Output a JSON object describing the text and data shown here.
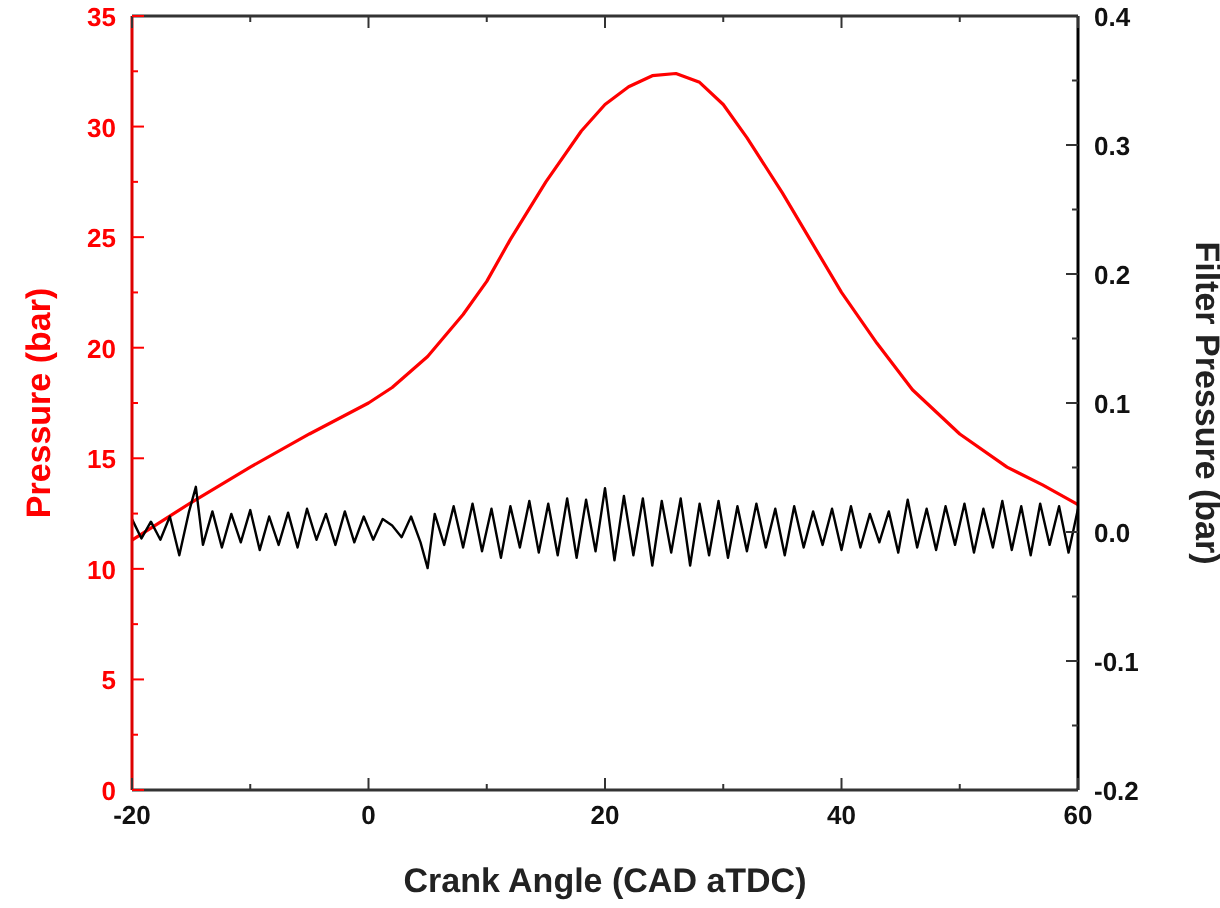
{
  "chart_data": {
    "type": "line",
    "xlabel": "Crank Angle (CAD aTDC)",
    "ylabel": "Pressure (bar)",
    "y2label": "Filter Pressure (bar)",
    "xlim": [
      -20,
      60
    ],
    "xticks": [
      -20,
      {
        "value": -10,
        "label": null
      },
      0,
      {
        "value": 10,
        "label": null
      },
      20,
      {
        "value": 30,
        "label": null
      },
      40,
      {
        "value": 50,
        "label": null
      },
      60
    ],
    "ylim": [
      0,
      35
    ],
    "yticks": [
      0,
      {
        "value": 2.5,
        "label": null
      },
      5,
      {
        "value": 7.5,
        "label": null
      },
      10,
      {
        "value": 12.5,
        "label": null
      },
      15,
      {
        "value": 17.5,
        "label": null
      },
      20,
      {
        "value": 22.5,
        "label": null
      },
      25,
      {
        "value": 27.5,
        "label": null
      },
      30,
      {
        "value": 32.5,
        "label": null
      },
      35
    ],
    "y2lim": [
      -0.2,
      0.4
    ],
    "y2ticks": [
      {
        "value": -0.2,
        "label": "-0.2"
      },
      {
        "value": -0.15,
        "label": null
      },
      {
        "value": -0.1,
        "label": "-0.1"
      },
      {
        "value": -0.05,
        "label": null
      },
      {
        "value": 0,
        "label": "0.0"
      },
      {
        "value": 0.05,
        "label": null
      },
      {
        "value": 0.1,
        "label": "0.1"
      },
      {
        "value": 0.15,
        "label": null
      },
      {
        "value": 0.2,
        "label": "0.2"
      },
      {
        "value": 0.25,
        "label": null
      },
      {
        "value": 0.3,
        "label": "0.3"
      },
      {
        "value": 0.35,
        "label": null
      },
      {
        "value": 0.4,
        "label": "0.4"
      }
    ],
    "grid": false,
    "marker": "none",
    "line_style": "solid",
    "series": [
      {
        "color": "#ff0000",
        "x": [
          -20,
          -15,
          -10,
          -5,
          0,
          2,
          5,
          8,
          10,
          12,
          15,
          18,
          20,
          22,
          24,
          26,
          28,
          30,
          32,
          35,
          38,
          40,
          43,
          46,
          50,
          54,
          57,
          60
        ],
        "values": [
          11.3,
          13,
          14.6,
          16.1,
          17.5,
          18.2,
          19.6,
          21.5,
          23,
          24.9,
          27.5,
          29.8,
          31,
          31.8,
          32.3,
          32.4,
          32,
          31,
          29.5,
          27,
          24.3,
          22.5,
          20.2,
          18.1,
          16.1,
          14.6,
          13.8,
          12.9
        ]
      },
      {
        "color": "#000000",
        "axis": "y2",
        "x": [
          -20,
          -19.2,
          -18.4,
          -17.6,
          -16.8,
          -16,
          -15.2,
          -14.6,
          -14,
          -13.2,
          -12.4,
          -11.6,
          -10.8,
          -10,
          -9.2,
          -8.4,
          -7.6,
          -6.8,
          -6,
          -5.2,
          -4.4,
          -3.6,
          -2.8,
          -2,
          -1.2,
          -0.4,
          0.4,
          1.2,
          2,
          2.8,
          3.6,
          4.4,
          5,
          5.6,
          6.4,
          7.2,
          8,
          8.8,
          9.6,
          10.4,
          11.2,
          12,
          12.8,
          13.6,
          14.4,
          15.2,
          16,
          16.8,
          17.6,
          18.4,
          19.2,
          20,
          20.8,
          21.6,
          22.4,
          23.2,
          24,
          24.8,
          25.6,
          26.4,
          27.2,
          28,
          28.8,
          29.6,
          30.4,
          31.2,
          32,
          32.8,
          33.6,
          34.4,
          35.2,
          36,
          36.8,
          37.6,
          38.4,
          39.2,
          40,
          40.8,
          41.6,
          42.4,
          43.2,
          44,
          44.8,
          45.6,
          46.4,
          47.2,
          48,
          48.8,
          49.6,
          50.4,
          51.2,
          52,
          52.8,
          53.6,
          54.4,
          55.2,
          56,
          56.8,
          57.6,
          58.4,
          59.2,
          60
        ],
        "values": [
          0.01,
          -0.005,
          0.008,
          -0.006,
          0.012,
          -0.018,
          0.015,
          0.035,
          -0.01,
          0.016,
          -0.012,
          0.014,
          -0.008,
          0.017,
          -0.014,
          0.012,
          -0.01,
          0.015,
          -0.012,
          0.018,
          -0.006,
          0.014,
          -0.01,
          0.016,
          -0.008,
          0.012,
          -0.006,
          0.01,
          0.005,
          -0.004,
          0.012,
          -0.008,
          -0.028,
          0.014,
          -0.01,
          0.02,
          -0.012,
          0.022,
          -0.015,
          0.018,
          -0.02,
          0.02,
          -0.012,
          0.024,
          -0.016,
          0.022,
          -0.018,
          0.026,
          -0.02,
          0.025,
          -0.015,
          0.034,
          -0.022,
          0.028,
          -0.018,
          0.026,
          -0.026,
          0.024,
          -0.016,
          0.026,
          -0.026,
          0.022,
          -0.018,
          0.024,
          -0.02,
          0.02,
          -0.015,
          0.022,
          -0.012,
          0.018,
          -0.018,
          0.02,
          -0.012,
          0.016,
          -0.01,
          0.018,
          -0.014,
          0.02,
          -0.012,
          0.014,
          -0.008,
          0.016,
          -0.016,
          0.025,
          -0.012,
          0.018,
          -0.014,
          0.02,
          -0.01,
          0.022,
          -0.016,
          0.018,
          -0.012,
          0.024,
          -0.014,
          0.02,
          -0.018,
          0.022,
          -0.01,
          0.02,
          -0.016,
          0.018
        ]
      }
    ]
  }
}
